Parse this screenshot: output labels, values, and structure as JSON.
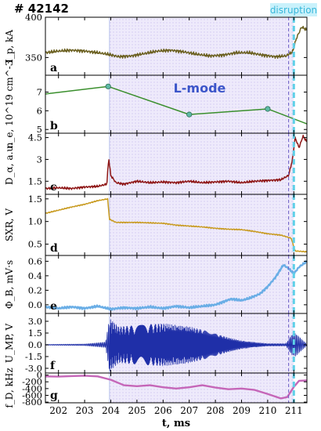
{
  "figure": {
    "shot_label": "# 42142",
    "event_label": "disruption",
    "mode_label": "L-mode",
    "xlabel": "t, ms",
    "xticks": [
      202,
      203,
      204,
      205,
      206,
      207,
      208,
      209,
      210,
      211
    ],
    "xlim": [
      201.5,
      211.5
    ],
    "shaded_interval": [
      203.95,
      211.0
    ],
    "disruption_time": 211.0,
    "marker_time": 210.8,
    "colors": {
      "shade": "#c8c0ee",
      "disruption_line": "#5fd0e8",
      "banner": "#c9f1fb",
      "banner_text": "#38b7da",
      "mode_text": "#3b55c9",
      "ip": "#6b6020",
      "ne": "#3a8f2d",
      "ne_marker": "#5fbaa6",
      "dalpha": "#8e1616",
      "sxr": "#c89a1e",
      "phib": "#6aaee6",
      "ump": "#1f2fa8",
      "fd": "#c566b8"
    }
  },
  "chart_data": [
    {
      "type": "line",
      "panel": "a",
      "ylabel": "I_p, kA",
      "ylim": [
        328,
        400
      ],
      "yticks": [
        350,
        400
      ],
      "series": [
        {
          "values": [
            [
              201.5,
              356
            ],
            [
              202,
              358
            ],
            [
              202.5,
              359
            ],
            [
              203,
              358
            ],
            [
              203.5,
              356
            ],
            [
              203.9,
              354
            ],
            [
              204.3,
              351
            ],
            [
              204.8,
              352
            ],
            [
              205.3,
              355
            ],
            [
              205.8,
              358
            ],
            [
              206.3,
              359
            ],
            [
              206.8,
              357
            ],
            [
              207.3,
              354
            ],
            [
              207.8,
              352
            ],
            [
              208.3,
              353
            ],
            [
              208.8,
              356
            ],
            [
              209.3,
              356
            ],
            [
              209.8,
              353
            ],
            [
              210.3,
              351
            ],
            [
              210.7,
              352
            ],
            [
              210.95,
              357
            ],
            [
              211.1,
              374
            ],
            [
              211.3,
              388
            ],
            [
              211.5,
              384
            ]
          ]
        }
      ]
    },
    {
      "type": "line",
      "panel": "b",
      "ylabel": "n_e, 10^19 cm^-3",
      "ylim": [
        4.8,
        7.9
      ],
      "yticks": [
        5,
        6,
        7
      ],
      "series": [
        {
          "values": [
            [
              201.5,
              6.9
            ],
            [
              203.9,
              7.3
            ],
            [
              207.0,
              5.8
            ],
            [
              210.0,
              6.1
            ],
            [
              211.5,
              5.3
            ]
          ]
        }
      ],
      "markers": [
        [
          203.9,
          7.3
        ],
        [
          207.0,
          5.8
        ],
        [
          210.0,
          6.1
        ]
      ]
    },
    {
      "type": "line",
      "panel": "c",
      "ylabel": "D_α, a.u.",
      "ylim": [
        0.6,
        4.8
      ],
      "yticks": [
        1.5,
        3,
        4.5
      ],
      "series": [
        {
          "values": [
            [
              201.5,
              1.0
            ],
            [
              202.0,
              1.05
            ],
            [
              202.5,
              1.0
            ],
            [
              203.0,
              1.1
            ],
            [
              203.5,
              1.15
            ],
            [
              203.85,
              1.3
            ],
            [
              203.92,
              3.1
            ],
            [
              204.0,
              1.9
            ],
            [
              204.2,
              1.4
            ],
            [
              204.5,
              1.3
            ],
            [
              205.0,
              1.5
            ],
            [
              205.5,
              1.4
            ],
            [
              206.0,
              1.45
            ],
            [
              206.5,
              1.4
            ],
            [
              207.0,
              1.5
            ],
            [
              207.5,
              1.4
            ],
            [
              208.0,
              1.45
            ],
            [
              208.5,
              1.5
            ],
            [
              209.0,
              1.4
            ],
            [
              209.5,
              1.5
            ],
            [
              210.0,
              1.55
            ],
            [
              210.5,
              1.6
            ],
            [
              210.8,
              1.9
            ],
            [
              210.95,
              3.0
            ],
            [
              211.05,
              4.5
            ],
            [
              211.2,
              3.8
            ],
            [
              211.35,
              4.6
            ],
            [
              211.5,
              4.2
            ]
          ]
        }
      ]
    },
    {
      "type": "line",
      "panel": "d",
      "ylabel": "SXR, V",
      "ylim": [
        0.25,
        1.6
      ],
      "yticks": [
        0.5,
        1.0,
        1.5
      ],
      "series": [
        {
          "values": [
            [
              201.5,
              1.18
            ],
            [
              202.0,
              1.25
            ],
            [
              202.5,
              1.32
            ],
            [
              203.0,
              1.38
            ],
            [
              203.5,
              1.46
            ],
            [
              203.88,
              1.5
            ],
            [
              203.95,
              1.05
            ],
            [
              204.2,
              0.98
            ],
            [
              205.0,
              0.98
            ],
            [
              205.5,
              0.97
            ],
            [
              206.0,
              0.96
            ],
            [
              206.5,
              0.92
            ],
            [
              207.0,
              0.9
            ],
            [
              207.5,
              0.88
            ],
            [
              208.0,
              0.85
            ],
            [
              208.5,
              0.83
            ],
            [
              209.0,
              0.82
            ],
            [
              209.5,
              0.78
            ],
            [
              210.0,
              0.73
            ],
            [
              210.5,
              0.7
            ],
            [
              210.9,
              0.63
            ],
            [
              211.05,
              0.35
            ],
            [
              211.5,
              0.33
            ]
          ]
        }
      ]
    },
    {
      "type": "line",
      "panel": "e",
      "ylabel": "Φ_B, mV·s",
      "ylim": [
        -0.12,
        0.68
      ],
      "yticks": [
        0.0,
        0.2,
        0.4,
        0.6
      ],
      "series": [
        {
          "values": [
            [
              201.5,
              -0.03
            ],
            [
              202.0,
              -0.05
            ],
            [
              202.5,
              -0.03
            ],
            [
              203.0,
              -0.05
            ],
            [
              203.5,
              -0.02
            ],
            [
              204.0,
              -0.06
            ],
            [
              204.5,
              -0.04
            ],
            [
              205.0,
              -0.05
            ],
            [
              205.5,
              -0.03
            ],
            [
              206.0,
              -0.05
            ],
            [
              206.5,
              -0.02
            ],
            [
              207.0,
              -0.04
            ],
            [
              207.5,
              -0.02
            ],
            [
              208.0,
              0.0
            ],
            [
              208.3,
              0.04
            ],
            [
              208.6,
              0.08
            ],
            [
              209.0,
              0.06
            ],
            [
              209.3,
              0.09
            ],
            [
              209.7,
              0.15
            ],
            [
              210.0,
              0.25
            ],
            [
              210.3,
              0.38
            ],
            [
              210.6,
              0.55
            ],
            [
              210.8,
              0.5
            ],
            [
              211.0,
              0.43
            ],
            [
              211.2,
              0.52
            ],
            [
              211.5,
              0.6
            ]
          ]
        }
      ]
    },
    {
      "type": "line",
      "panel": "f",
      "ylabel": "U_MP, V",
      "ylim": [
        -3.6,
        4.0
      ],
      "yticks": [
        -3.0,
        -1.5,
        0.0,
        1.5,
        3.0
      ],
      "series": [
        {
          "kind": "oscillation",
          "values": [
            [
              201.5,
              0.05
            ],
            [
              203.0,
              0.1
            ],
            [
              203.8,
              0.35
            ],
            [
              203.95,
              3.4
            ],
            [
              204.3,
              2.3
            ],
            [
              205.5,
              2.6
            ],
            [
              206.0,
              2.7
            ],
            [
              207.0,
              2.3
            ],
            [
              207.5,
              1.9
            ],
            [
              208.0,
              1.4
            ],
            [
              208.5,
              0.9
            ],
            [
              209.0,
              0.5
            ],
            [
              209.5,
              0.3
            ],
            [
              210.0,
              0.15
            ],
            [
              210.7,
              0.15
            ],
            [
              210.9,
              1.2
            ],
            [
              211.05,
              1.5
            ],
            [
              211.5,
              0.1
            ]
          ]
        }
      ]
    },
    {
      "type": "line",
      "panel": "g",
      "ylabel": "f_D, kHz",
      "ylim": [
        -820,
        60
      ],
      "yticks": [
        -800,
        -600,
        -400,
        -200,
        0
      ],
      "series": [
        {
          "values": [
            [
              201.5,
              -40
            ],
            [
              202.0,
              -45
            ],
            [
              202.5,
              -30
            ],
            [
              203.0,
              -20
            ],
            [
              203.5,
              -40
            ],
            [
              204.0,
              -140
            ],
            [
              204.5,
              -300
            ],
            [
              205.0,
              -330
            ],
            [
              205.5,
              -300
            ],
            [
              206.0,
              -360
            ],
            [
              206.5,
              -400
            ],
            [
              207.0,
              -360
            ],
            [
              207.5,
              -300
            ],
            [
              208.0,
              -370
            ],
            [
              208.5,
              -420
            ],
            [
              209.0,
              -400
            ],
            [
              209.5,
              -440
            ],
            [
              210.0,
              -560
            ],
            [
              210.5,
              -690
            ],
            [
              210.75,
              -650
            ],
            [
              211.0,
              -350
            ],
            [
              211.2,
              -170
            ],
            [
              211.5,
              -160
            ]
          ]
        }
      ]
    }
  ]
}
